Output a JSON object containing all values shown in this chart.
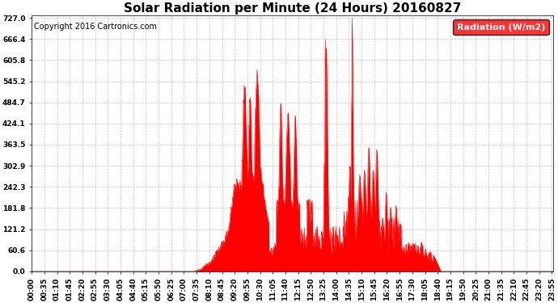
{
  "title": "Solar Radiation per Minute (24 Hours) 20160827",
  "copyright": "Copyright 2016 Cartronics.com",
  "legend_label": "Radiation (W/m2)",
  "ylabel_values": [
    0.0,
    60.6,
    121.2,
    181.8,
    242.3,
    302.9,
    363.5,
    424.1,
    484.7,
    545.2,
    605.8,
    666.4,
    727.0
  ],
  "ymax": 727.0,
  "ymin": 0.0,
  "fill_color": "#ff0000",
  "line_color": "#ff0000",
  "dashed_line_color": "#ff0000",
  "grid_color": "#aaaaaa",
  "background_color": "#ffffff",
  "title_fontsize": 11,
  "copyright_fontsize": 7,
  "tick_fontsize": 6.5,
  "legend_fontsize": 8,
  "tick_interval_minutes": 35
}
